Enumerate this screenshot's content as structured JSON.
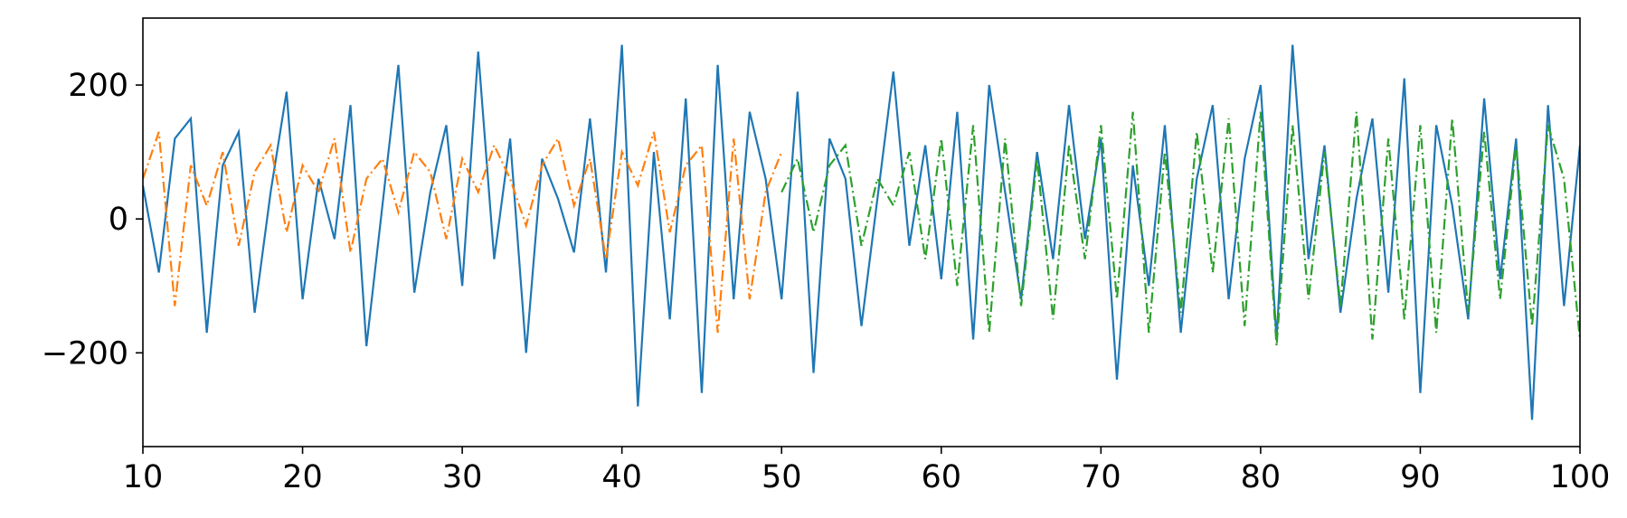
{
  "chart_data": {
    "type": "line",
    "x": [
      10,
      11,
      12,
      13,
      14,
      15,
      16,
      17,
      18,
      19,
      20,
      21,
      22,
      23,
      24,
      25,
      26,
      27,
      28,
      29,
      30,
      31,
      32,
      33,
      34,
      35,
      36,
      37,
      38,
      39,
      40,
      41,
      42,
      43,
      44,
      45,
      46,
      47,
      48,
      49,
      50,
      51,
      52,
      53,
      54,
      55,
      56,
      57,
      58,
      59,
      60,
      61,
      62,
      63,
      64,
      65,
      66,
      67,
      68,
      69,
      70,
      71,
      72,
      73,
      74,
      75,
      76,
      77,
      78,
      79,
      80,
      81,
      82,
      83,
      84,
      85,
      86,
      87,
      88,
      89,
      90,
      91,
      92,
      93,
      94,
      95,
      96,
      97,
      98,
      99,
      100
    ],
    "series": [
      {
        "color": "#1f77b4",
        "linestyle": "solid",
        "values": [
          50,
          -80,
          120,
          150,
          -170,
          80,
          130,
          -140,
          40,
          190,
          -120,
          60,
          -30,
          170,
          -190,
          20,
          230,
          -110,
          40,
          140,
          -100,
          250,
          -60,
          120,
          -200,
          90,
          30,
          -50,
          150,
          -80,
          260,
          -280,
          100,
          -150,
          180,
          -260,
          230,
          -120,
          160,
          60,
          -120,
          190,
          -230,
          120,
          60,
          -160,
          30,
          220,
          -40,
          110,
          -90,
          160,
          -180,
          200,
          40,
          -120,
          100,
          -60,
          170,
          -30,
          120,
          -240,
          80,
          -100,
          140,
          -170,
          60,
          170,
          -120,
          90,
          200,
          -180,
          260,
          -60,
          110,
          -140,
          30,
          150,
          -110,
          210,
          -260,
          140,
          20,
          -150,
          180,
          -90,
          120,
          -300,
          170,
          -130,
          110
        ]
      },
      {
        "color": "#ff7f0e",
        "linestyle": "dashdot",
        "values": [
          60,
          130,
          -130,
          80,
          20,
          100,
          -40,
          70,
          110,
          -20,
          80,
          40,
          120,
          -50,
          60,
          90,
          10,
          100,
          70,
          -30,
          90,
          40,
          110,
          60,
          -10,
          80,
          120,
          20,
          90,
          -60,
          100,
          50,
          130,
          -20,
          80,
          110,
          -170,
          120,
          -120,
          40,
          100,
          null,
          null,
          null,
          null,
          null,
          null,
          null,
          null,
          null,
          null,
          null,
          null,
          null,
          null,
          null,
          null,
          null,
          null,
          null,
          null,
          null,
          null,
          null,
          null,
          null,
          null,
          null,
          null,
          null,
          null,
          null,
          null,
          null,
          null,
          null,
          null,
          null,
          null,
          null,
          null,
          null,
          null,
          null,
          null,
          null,
          null,
          null,
          null,
          null,
          null
        ]
      },
      {
        "color": "#2ca02c",
        "linestyle": "dashdot",
        "values": [
          null,
          null,
          null,
          null,
          null,
          null,
          null,
          null,
          null,
          null,
          null,
          null,
          null,
          null,
          null,
          null,
          null,
          null,
          null,
          null,
          null,
          null,
          null,
          null,
          null,
          null,
          null,
          null,
          null,
          null,
          null,
          null,
          null,
          null,
          null,
          null,
          null,
          null,
          null,
          null,
          40,
          90,
          -20,
          80,
          110,
          -40,
          60,
          20,
          100,
          -60,
          120,
          -100,
          140,
          -170,
          120,
          -130,
          90,
          -150,
          110,
          -60,
          140,
          -120,
          160,
          -170,
          100,
          -140,
          130,
          -80,
          150,
          -160,
          160,
          -190,
          140,
          -120,
          100,
          -130,
          160,
          -180,
          120,
          -150,
          140,
          -170,
          150,
          -140,
          130,
          -120,
          110,
          -160,
          140,
          60,
          -180
        ]
      }
    ],
    "xlim": [
      10,
      100
    ],
    "xticks": [
      10,
      20,
      30,
      40,
      50,
      60,
      70,
      80,
      90,
      100
    ],
    "ylim": [
      -340,
      300
    ],
    "yticks": [
      {
        "value": -200,
        "label": "−200"
      },
      0,
      200
    ]
  }
}
